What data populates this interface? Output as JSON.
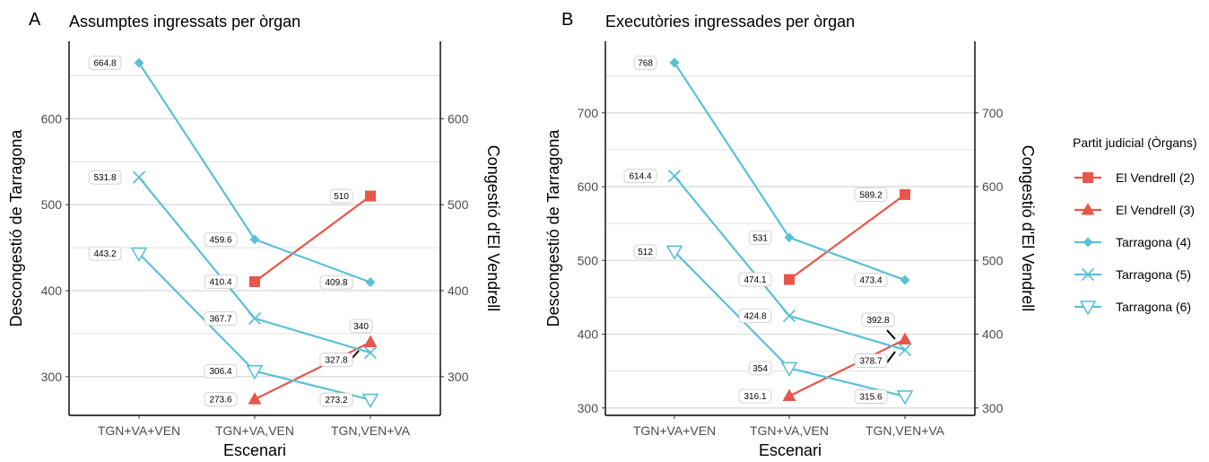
{
  "colors": {
    "el_vendrell": "#E8564A",
    "tarragona": "#5BC0D6",
    "gridline": "#e0e0e0",
    "axis": "#000000"
  },
  "legend": {
    "title": "Partit judicial (Òrgans)",
    "items": [
      {
        "label": "El Vendrell (2)",
        "marker": "square",
        "color": "#E8564A"
      },
      {
        "label": "El Vendrell (3)",
        "marker": "triangle-up",
        "color": "#E8564A"
      },
      {
        "label": "Tarragona (4)",
        "marker": "diamond",
        "color": "#5BC0D6"
      },
      {
        "label": "Tarragona (5)",
        "marker": "cross",
        "color": "#5BC0D6"
      },
      {
        "label": "Tarragona (6)",
        "marker": "triangle-down-open",
        "color": "#5BC0D6"
      }
    ]
  },
  "chart_data": [
    {
      "tag": "A",
      "type": "line",
      "title": "Assumptes ingressats per òrgan",
      "xlabel": "Escenari",
      "ylabel": "Descongestió de Tarragona",
      "ylabel_right": "Congestió d'El Vendrell",
      "categories": [
        "TGN+VA+VEN",
        "TGN+VA,VEN",
        "TGN,VEN+VA"
      ],
      "ylim": [
        255,
        690
      ],
      "y_ticks": [
        300,
        400,
        500,
        600
      ],
      "grid": true,
      "series": [
        {
          "name": "El Vendrell (2)",
          "marker": "square",
          "color": "#E8564A",
          "values": [
            null,
            410.4,
            510
          ],
          "labels": [
            "",
            "410.4",
            "510"
          ]
        },
        {
          "name": "El Vendrell (3)",
          "marker": "triangle-up",
          "color": "#E8564A",
          "values": [
            null,
            273.6,
            340
          ],
          "labels": [
            "",
            "273.6",
            "340"
          ]
        },
        {
          "name": "Tarragona (4)",
          "marker": "diamond",
          "color": "#5BC0D6",
          "values": [
            664.8,
            459.6,
            409.8
          ],
          "labels": [
            "664.8",
            "459.6",
            "409.8"
          ]
        },
        {
          "name": "Tarragona (5)",
          "marker": "cross",
          "color": "#5BC0D6",
          "values": [
            531.8,
            367.7,
            327.8
          ],
          "labels": [
            "531.8",
            "367.7",
            "327.8"
          ]
        },
        {
          "name": "Tarragona (6)",
          "marker": "triangle-down-open",
          "color": "#5BC0D6",
          "values": [
            443.2,
            306.4,
            273.2
          ],
          "labels": [
            "443.2",
            "306.4",
            "273.2"
          ]
        }
      ]
    },
    {
      "tag": "B",
      "type": "line",
      "title": "Executòries ingressades per òrgan",
      "xlabel": "Escenari",
      "ylabel": "Descongestió de Tarragona",
      "ylabel_right": "Congestió d'El Vendrell",
      "categories": [
        "TGN+VA+VEN",
        "TGN+VA,VEN",
        "TGN,VEN+VA"
      ],
      "ylim": [
        290,
        797
      ],
      "y_ticks": [
        300,
        400,
        500,
        600,
        700
      ],
      "grid": true,
      "series": [
        {
          "name": "El Vendrell (2)",
          "marker": "square",
          "color": "#E8564A",
          "values": [
            null,
            474.1,
            589.2
          ],
          "labels": [
            "",
            "474.1",
            "589.2"
          ]
        },
        {
          "name": "El Vendrell (3)",
          "marker": "triangle-up",
          "color": "#E8564A",
          "values": [
            null,
            316.1,
            392.8
          ],
          "labels": [
            "",
            "316.1",
            "392.8"
          ]
        },
        {
          "name": "Tarragona (4)",
          "marker": "diamond",
          "color": "#5BC0D6",
          "values": [
            768,
            531,
            473.4
          ],
          "labels": [
            "768",
            "531",
            "473.4"
          ]
        },
        {
          "name": "Tarragona (5)",
          "marker": "cross",
          "color": "#5BC0D6",
          "values": [
            614.4,
            424.8,
            378.7
          ],
          "labels": [
            "614.4",
            "424.8",
            "378.7"
          ]
        },
        {
          "name": "Tarragona (6)",
          "marker": "triangle-down-open",
          "color": "#5BC0D6",
          "values": [
            512,
            354,
            315.6
          ],
          "labels": [
            "512",
            "354",
            "315.6"
          ]
        }
      ]
    }
  ]
}
